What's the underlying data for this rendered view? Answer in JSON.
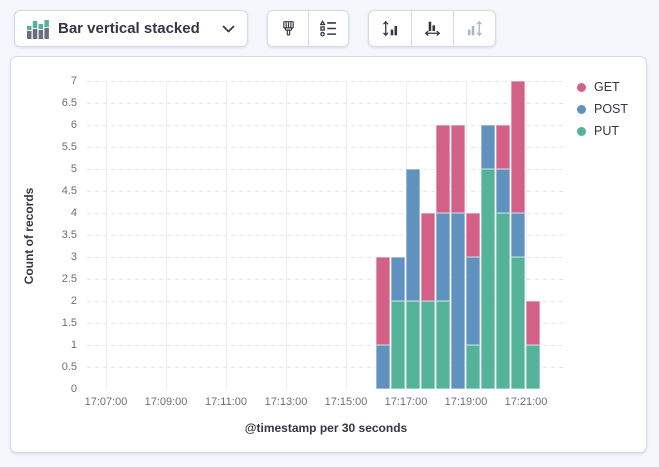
{
  "toolbar": {
    "chart_type_selector": {
      "label": "Bar vertical stacked",
      "icon": "bar-vertical-stacked-icon"
    },
    "style_group": {
      "visual_options_icon": "paintbrush-icon",
      "legend_settings_icon": "legend-values-icon"
    },
    "axis_group": {
      "left_axis_icon": "axis-left-icon",
      "bottom_axis_icon": "axis-bottom-icon",
      "right_axis_icon": "axis-right-icon",
      "right_axis_disabled": true
    }
  },
  "chart_data": {
    "type": "bar",
    "stacked": true,
    "orientation": "vertical",
    "title": "",
    "ylabel": "Count of records",
    "xlabel": "@timestamp per 30 seconds",
    "ylim": [
      0,
      7
    ],
    "y_tick_step": 0.5,
    "grid": {
      "horizontal": "dashed",
      "vertical": "solid"
    },
    "x_axis_ticks": [
      "17:07:00",
      "17:09:00",
      "17:11:00",
      "17:13:00",
      "17:15:00",
      "17:17:00",
      "17:19:00",
      "17:21:00"
    ],
    "categories": [
      "17:16:00",
      "17:16:30",
      "17:17:00",
      "17:17:30",
      "17:18:00",
      "17:18:30",
      "17:19:00",
      "17:19:30",
      "17:20:00",
      "17:20:30",
      "17:21:00"
    ],
    "series": [
      {
        "name": "GET",
        "color": "#D36086",
        "values": [
          2,
          0,
          0,
          2,
          2,
          2,
          1,
          0,
          1,
          3,
          1
        ]
      },
      {
        "name": "POST",
        "color": "#6092C0",
        "values": [
          1,
          1,
          3,
          0,
          2,
          4,
          2,
          1,
          1,
          1,
          0
        ]
      },
      {
        "name": "PUT",
        "color": "#54B399",
        "values": [
          0,
          2,
          2,
          2,
          2,
          0,
          1,
          5,
          4,
          3,
          1
        ]
      }
    ],
    "stack_order_bottom_to_top": [
      "PUT",
      "POST",
      "GET"
    ],
    "legend": {
      "position": "right"
    }
  }
}
